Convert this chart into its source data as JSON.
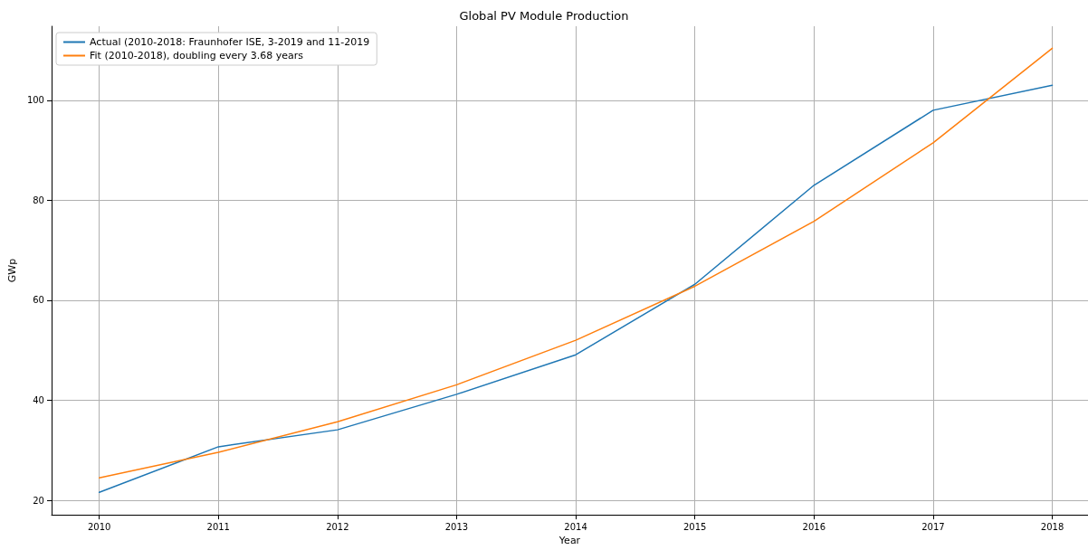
{
  "chart_data": {
    "type": "line",
    "title": "Global PV Module Production",
    "xlabel": "Year",
    "ylabel": "GWp",
    "x": [
      2010,
      2011,
      2012,
      2013,
      2014,
      2015,
      2016,
      2017,
      2018
    ],
    "series": [
      {
        "name": "Actual (2010-2018: Fraunhofer ISE, 3-2019 and 11-2019",
        "color": "#1f77b4",
        "values": [
          21.6,
          30.7,
          34.1,
          41.2,
          49.1,
          63.2,
          83.0,
          98.0,
          103.0
        ]
      },
      {
        "name": "Fit (2010-2018), doubling every 3.68 years",
        "color": "#ff7f0e",
        "values": [
          24.5,
          29.6,
          35.7,
          43.1,
          52.0,
          62.8,
          75.8,
          91.5,
          110.4
        ]
      }
    ],
    "xlim": [
      2009.6,
      2018.3
    ],
    "xticks": [
      2010,
      2011,
      2012,
      2013,
      2014,
      2015,
      2016,
      2017,
      2018
    ],
    "ylim": [
      17.1,
      114.8
    ],
    "yticks": [
      20,
      40,
      60,
      80,
      100
    ],
    "grid": true,
    "legend": "top left",
    "marker": "none",
    "line_style": "solid"
  }
}
